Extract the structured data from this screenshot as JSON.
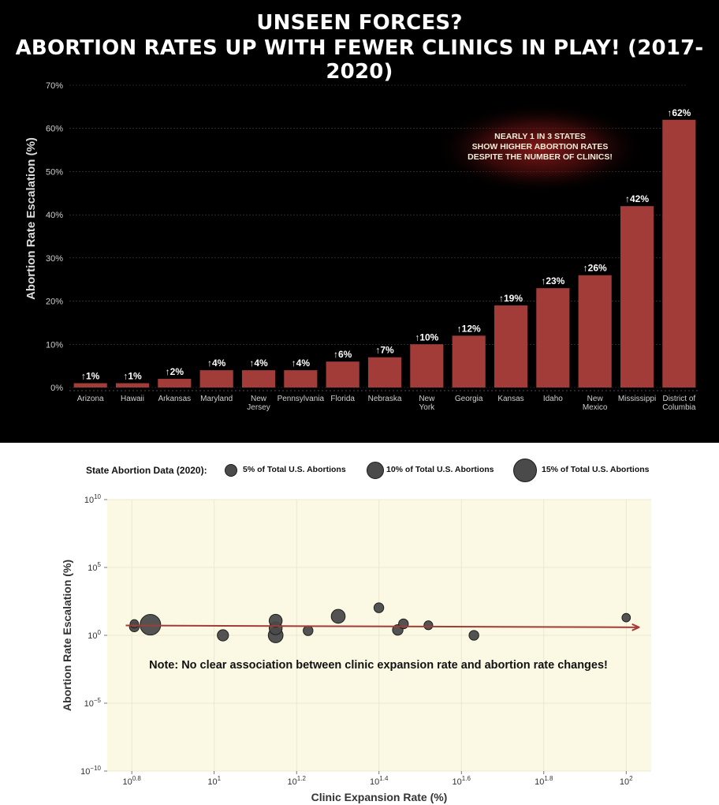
{
  "title": {
    "line1": "UNSEEN FORCES?",
    "line2": "ABORTION RATES UP WITH FEWER CLINICS IN PLAY! (2017-2020)"
  },
  "colors": {
    "bar": "#a23c38",
    "bubble": "#4a4a4a",
    "trend": "#a23c38",
    "plot_bg": "#fbf8e3"
  },
  "chart_data": [
    {
      "type": "bar",
      "ylabel": "Abortion Rate Escalation (%)",
      "ylim": [
        0,
        70
      ],
      "yticks": [
        "0%",
        "10%",
        "20%",
        "30%",
        "40%",
        "50%",
        "60%",
        "70%"
      ],
      "categories": [
        "Arizona",
        "Hawaii",
        "Arkansas",
        "Maryland",
        "New Jersey",
        "Pennsylvania",
        "Florida",
        "Nebraska",
        "New York",
        "Georgia",
        "Kansas",
        "Idaho",
        "New Mexico",
        "Mississippi",
        "District of Columbia"
      ],
      "category_lines": [
        [
          "Arizona"
        ],
        [
          "Hawaii"
        ],
        [
          "Arkansas"
        ],
        [
          "Maryland"
        ],
        [
          "New",
          "Jersey"
        ],
        [
          "Pennsylvania"
        ],
        [
          "Florida"
        ],
        [
          "Nebraska"
        ],
        [
          "New",
          "York"
        ],
        [
          "Georgia"
        ],
        [
          "Kansas"
        ],
        [
          "Idaho"
        ],
        [
          "New",
          "Mexico"
        ],
        [
          "Mississippi"
        ],
        [
          "District of",
          "Columbia"
        ]
      ],
      "values": [
        1,
        1,
        2,
        4,
        4,
        4,
        6,
        7,
        10,
        12,
        19,
        23,
        26,
        42,
        62
      ],
      "data_labels": [
        "↑1%",
        "↑1%",
        "↑2%",
        "↑4%",
        "↑4%",
        "↑4%",
        "↑6%",
        "↑7%",
        "↑10%",
        "↑12%",
        "↑19%",
        "↑23%",
        "↑26%",
        "↑42%",
        "↑62%"
      ],
      "grid": true,
      "annotation": [
        "NEARLY 1 IN 3 STATES",
        "SHOW HIGHER ABORTION RATES",
        "DESPITE THE NUMBER OF CLINICS!"
      ]
    },
    {
      "type": "scatter",
      "xlabel": "Clinic Expansion Rate (%)",
      "ylabel": "Abortion Rate Escalation (%)",
      "x_scale": "log",
      "y_scale": "log",
      "xlim": [
        5.5,
        115
      ],
      "ylim": [
        1e-10,
        10000000000.0
      ],
      "x_ticks": [
        {
          "value": 6.31,
          "base": "10",
          "exp": "0.8"
        },
        {
          "value": 10,
          "base": "10",
          "exp": "1"
        },
        {
          "value": 15.85,
          "base": "10",
          "exp": "1.2"
        },
        {
          "value": 25.12,
          "base": "10",
          "exp": "1.4"
        },
        {
          "value": 39.81,
          "base": "10",
          "exp": "1.6"
        },
        {
          "value": 63.1,
          "base": "10",
          "exp": "1.8"
        },
        {
          "value": 100,
          "base": "10",
          "exp": "2"
        }
      ],
      "y_ticks": [
        {
          "value": 1e-10,
          "base": "10",
          "exp": "−10"
        },
        {
          "value": 1e-05,
          "base": "10",
          "exp": "−5"
        },
        {
          "value": 1,
          "base": "10",
          "exp": "0"
        },
        {
          "value": 100000.0,
          "base": "10",
          "exp": "5"
        },
        {
          "value": 10000000000.0,
          "base": "10",
          "exp": "10"
        }
      ],
      "legend_title": "State Abortion Data (2020):",
      "legend": [
        {
          "label": "5% of Total U.S. Abortions",
          "share": 5
        },
        {
          "label": "10% of Total U.S. Abortions",
          "share": 10
        },
        {
          "label": "15% of Total U.S. Abortions",
          "share": 15
        }
      ],
      "points": [
        {
          "x": 6.4,
          "y": 4.2,
          "share": 1.5
        },
        {
          "x": 6.4,
          "y": 7,
          "share": 0.8
        },
        {
          "x": 7.0,
          "y": 6,
          "share": 15
        },
        {
          "x": 10.5,
          "y": 1,
          "share": 2.5
        },
        {
          "x": 14.1,
          "y": 1,
          "share": 6
        },
        {
          "x": 14.1,
          "y": 3.3,
          "share": 4
        },
        {
          "x": 14.1,
          "y": 11.8,
          "share": 4
        },
        {
          "x": 16.9,
          "y": 2.2,
          "share": 1.5
        },
        {
          "x": 20.0,
          "y": 25,
          "share": 5
        },
        {
          "x": 25.1,
          "y": 107,
          "share": 1.5
        },
        {
          "x": 27.9,
          "y": 2.5,
          "share": 2
        },
        {
          "x": 28.8,
          "y": 7,
          "share": 1.5
        },
        {
          "x": 33.1,
          "y": 5.5,
          "share": 1
        },
        {
          "x": 42.7,
          "y": 1,
          "share": 1.5
        },
        {
          "x": 100,
          "y": 20,
          "share": 0.8
        }
      ],
      "trend": {
        "x": [
          6.1,
          107
        ],
        "y": [
          5.3,
          3.9
        ]
      },
      "note": "Note: No clear association between clinic expansion rate and abortion rate changes!"
    }
  ]
}
